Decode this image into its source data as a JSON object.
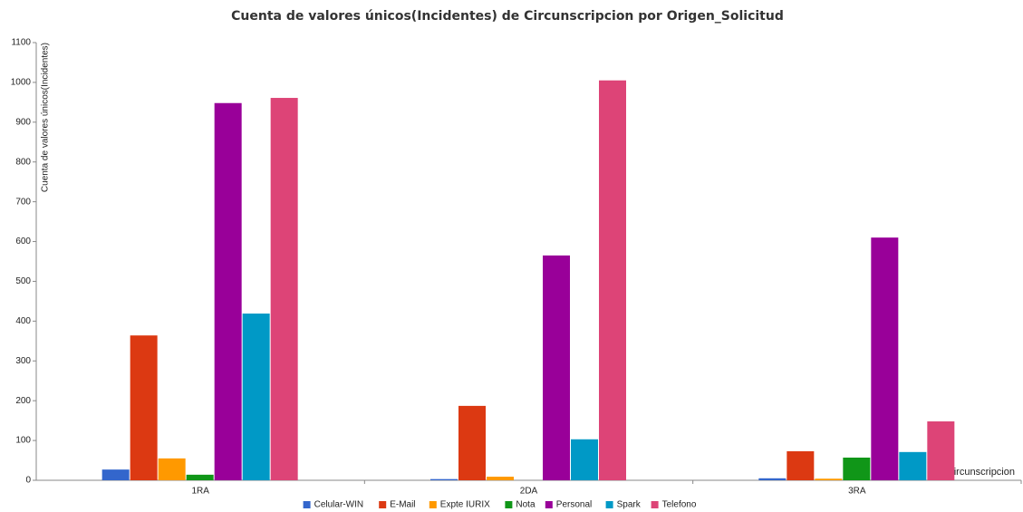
{
  "chart_data": {
    "type": "bar",
    "title": "Cuenta de valores únicos(Incidentes) de Circunscripcion por Origen_Solicitud",
    "y_label": "Cuenta de valores únicos(Incidentes)",
    "x_label": "Circunscripcion",
    "categories": [
      "1RA",
      "2DA",
      "3RA"
    ],
    "series": [
      {
        "name": "Celular-WIN",
        "color": "#3366cc",
        "values": [
          27,
          3,
          5
        ]
      },
      {
        "name": "E-Mail",
        "color": "#dc3912",
        "values": [
          364,
          187,
          73
        ]
      },
      {
        "name": "Expte IURIX",
        "color": "#ff9900",
        "values": [
          55,
          9,
          4
        ]
      },
      {
        "name": "Nota",
        "color": "#109618",
        "values": [
          14,
          0,
          57
        ]
      },
      {
        "name": "Personal",
        "color": "#990099",
        "values": [
          948,
          565,
          610
        ]
      },
      {
        "name": "Spark",
        "color": "#0099c6",
        "values": [
          419,
          103,
          71
        ]
      },
      {
        "name": "Telefono",
        "color": "#dd4477",
        "values": [
          961,
          1005,
          148
        ]
      }
    ],
    "ylim": [
      0,
      1100
    ],
    "yticks": [
      0,
      100,
      200,
      300,
      400,
      500,
      600,
      700,
      800,
      900,
      1000,
      1100
    ],
    "grid": false,
    "legend": "bottom"
  }
}
